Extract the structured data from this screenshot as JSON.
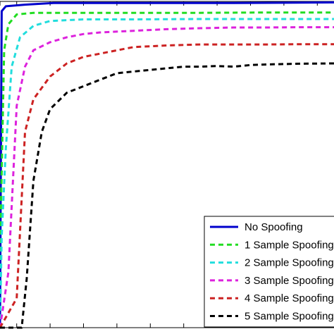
{
  "chart_data": {
    "type": "line",
    "title": "",
    "xlabel": "",
    "ylabel": "",
    "xlim": [
      0,
      20
    ],
    "ylim": [
      0,
      1
    ],
    "x_ticks": [
      0,
      1,
      3,
      5,
      7,
      9,
      11,
      13,
      15,
      17,
      19
    ],
    "legend_position": "bottom-right",
    "series": [
      {
        "name": "No Spoofing",
        "color": "#0000cc",
        "style": "solid",
        "points": [
          [
            0.0,
            0.0
          ],
          [
            0.1,
            0.97
          ],
          [
            0.35,
            0.985
          ],
          [
            1.5,
            0.99
          ],
          [
            3.2,
            0.995
          ],
          [
            6,
            0.995
          ],
          [
            10,
            0.995
          ],
          [
            14,
            0.995
          ],
          [
            17,
            0.996
          ],
          [
            20,
            0.997
          ]
        ]
      },
      {
        "name": "1 Sample Spoofing",
        "color": "#22dd22",
        "style": "dashed",
        "points": [
          [
            0.0,
            0.0
          ],
          [
            0.05,
            0.35
          ],
          [
            0.25,
            0.85
          ],
          [
            0.5,
            0.93
          ],
          [
            1.0,
            0.96
          ],
          [
            2,
            0.965
          ],
          [
            4,
            0.965
          ],
          [
            8,
            0.965
          ],
          [
            12,
            0.965
          ],
          [
            16,
            0.966
          ],
          [
            20,
            0.966
          ]
        ]
      },
      {
        "name": "2 Sample Spoofing",
        "color": "#22dddd",
        "style": "dashed",
        "points": [
          [
            0.0,
            0.0
          ],
          [
            0.1,
            0.28
          ],
          [
            0.35,
            0.55
          ],
          [
            0.7,
            0.8
          ],
          [
            1.2,
            0.89
          ],
          [
            2,
            0.925
          ],
          [
            3,
            0.94
          ],
          [
            5,
            0.945
          ],
          [
            8,
            0.945
          ],
          [
            12,
            0.946
          ],
          [
            16,
            0.946
          ],
          [
            20,
            0.946
          ]
        ]
      },
      {
        "name": "3 Sample Spoofing",
        "color": "#dd22dd",
        "style": "dashed",
        "points": [
          [
            0.0,
            0.0
          ],
          [
            0.5,
            0.17
          ],
          [
            1.0,
            0.68
          ],
          [
            1.5,
            0.8
          ],
          [
            2,
            0.85
          ],
          [
            3,
            0.875
          ],
          [
            4,
            0.89
          ],
          [
            5,
            0.9
          ],
          [
            6,
            0.905
          ],
          [
            8,
            0.91
          ],
          [
            10,
            0.915
          ],
          [
            12,
            0.918
          ],
          [
            14,
            0.92
          ],
          [
            16,
            0.92
          ],
          [
            18,
            0.921
          ],
          [
            20,
            0.921
          ]
        ]
      },
      {
        "name": "4 Sample Spoofing",
        "color": "#cc2222",
        "style": "dashed",
        "points": [
          [
            0.0,
            0.0
          ],
          [
            1.0,
            0.09
          ],
          [
            1.5,
            0.6
          ],
          [
            2,
            0.7
          ],
          [
            3,
            0.77
          ],
          [
            4,
            0.81
          ],
          [
            5,
            0.83
          ],
          [
            6,
            0.84
          ],
          [
            7,
            0.85
          ],
          [
            8,
            0.86
          ],
          [
            10,
            0.865
          ],
          [
            12,
            0.868
          ],
          [
            14,
            0.868
          ],
          [
            16,
            0.868
          ],
          [
            18,
            0.869
          ],
          [
            20,
            0.869
          ]
        ]
      },
      {
        "name": "5 Sample Spoofing",
        "color": "#000000",
        "style": "dashed",
        "points": [
          [
            0.0,
            0.0
          ],
          [
            1.3,
            0.0
          ],
          [
            1.6,
            0.15
          ],
          [
            2,
            0.45
          ],
          [
            2.5,
            0.6
          ],
          [
            3,
            0.67
          ],
          [
            4,
            0.72
          ],
          [
            5,
            0.74
          ],
          [
            6,
            0.76
          ],
          [
            7,
            0.78
          ],
          [
            8,
            0.785
          ],
          [
            9,
            0.79
          ],
          [
            10,
            0.795
          ],
          [
            11,
            0.8
          ],
          [
            12,
            0.8
          ],
          [
            13,
            0.802
          ],
          [
            14,
            0.8
          ],
          [
            15,
            0.805
          ],
          [
            16,
            0.807
          ],
          [
            17,
            0.808
          ],
          [
            18,
            0.809
          ],
          [
            20,
            0.81
          ]
        ]
      }
    ]
  }
}
